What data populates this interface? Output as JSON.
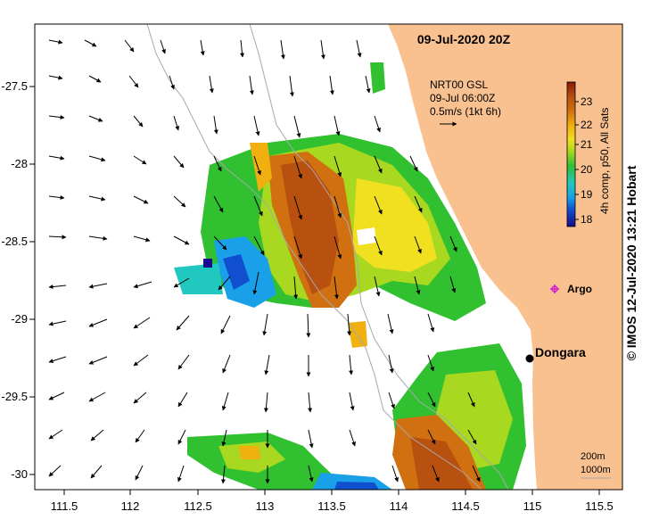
{
  "title": "09-Jul-2020 20Z",
  "vector_legend": {
    "line1": "NRT00 GSL",
    "line2": "09-Jul 06:00Z",
    "line3": "0.5m/s (1kt 6h)"
  },
  "colorbar": {
    "label": "4h comp, p50, All Sats",
    "ticks": [
      "18",
      "19",
      "20",
      "21",
      "22",
      "23"
    ],
    "min": 17.8,
    "max": 23.6
  },
  "places": {
    "argo": "Argo",
    "dongara": "Dongara"
  },
  "contour_legend": {
    "line1": "200m",
    "line2": "1000m"
  },
  "credit": "© IMOS 12-Jul-2020 13:21 Hobart",
  "axes": {
    "x_ticks": [
      "111.5",
      "112",
      "112.5",
      "113",
      "113.5",
      "114",
      "114.5",
      "115",
      "115.5"
    ],
    "y_ticks": [
      "-27.5",
      "-28",
      "-28.5",
      "-29",
      "-29.5",
      "-30"
    ],
    "x_range": [
      111.3,
      115.6
    ],
    "y_range": [
      -30.1,
      -27.1
    ]
  },
  "colors": {
    "land": "#f9c18f",
    "argo_marker": "#d020d0",
    "place_marker": "#000000"
  }
}
